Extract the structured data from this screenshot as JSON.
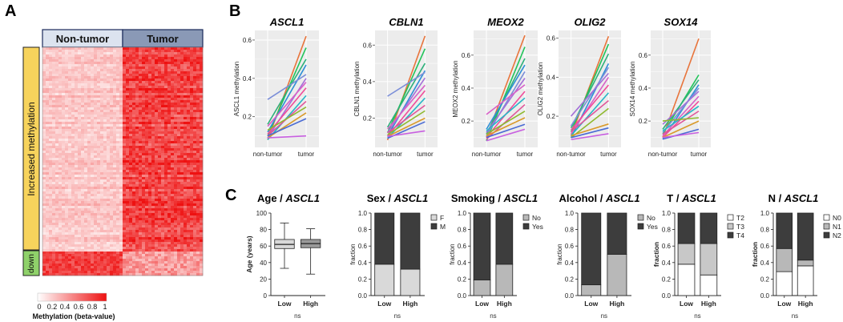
{
  "panels": {
    "a": "A",
    "b": "B",
    "c": "C"
  },
  "heatmap": {
    "group_left": "Non-tumor",
    "group_right": "Tumor",
    "side_up": "Increased methylation",
    "side_down": "down",
    "colorbar_ticks": [
      "0",
      "0.2",
      "0.4",
      "0.6",
      "0.8",
      "1"
    ],
    "colorbar_label": "Methylation (beta-value)",
    "colors": {
      "low": "#ffffff",
      "high": "#ee1111",
      "up_bar": "#f7d35c",
      "down_bar": "#8fd16a",
      "head_left": "#dce3ef",
      "head_right": "#8a99b6"
    }
  },
  "chart_data": [
    {
      "type": "line",
      "gene": "ASCL1",
      "title": "ASCL1",
      "ylabel": "ASCL1 methylation",
      "categories": [
        "non-tumor",
        "tumor"
      ],
      "ylim": [
        0.04,
        0.65
      ],
      "yticks": [
        0.2,
        0.4,
        0.6
      ],
      "ytick_labels": [
        "0.2",
        "0.4",
        "0.6"
      ],
      "series": [
        {
          "values": [
            0.08,
            0.62
          ]
        },
        {
          "values": [
            0.1,
            0.56
          ]
        },
        {
          "values": [
            0.16,
            0.5
          ]
        },
        {
          "values": [
            0.12,
            0.47
          ]
        },
        {
          "values": [
            0.29,
            0.42
          ]
        },
        {
          "values": [
            0.09,
            0.4
          ]
        },
        {
          "values": [
            0.15,
            0.38
          ]
        },
        {
          "values": [
            0.11,
            0.35
          ]
        },
        {
          "values": [
            0.08,
            0.31
          ]
        },
        {
          "values": [
            0.1,
            0.28
          ]
        },
        {
          "values": [
            0.13,
            0.25
          ]
        },
        {
          "values": [
            0.09,
            0.22
          ]
        },
        {
          "values": [
            0.1,
            0.19
          ]
        },
        {
          "values": [
            0.09,
            0.1
          ]
        }
      ]
    },
    {
      "type": "line",
      "gene": "CBLN1",
      "title": "CBLN1",
      "ylabel": "CBLN1 methylation",
      "categories": [
        "non-tumor",
        "tumor"
      ],
      "ylim": [
        0.04,
        0.68
      ],
      "yticks": [
        0.2,
        0.4,
        0.6
      ],
      "ytick_labels": [
        "0.2",
        "0.4",
        "0.6"
      ],
      "series": [
        {
          "values": [
            0.08,
            0.65
          ]
        },
        {
          "values": [
            0.12,
            0.58
          ]
        },
        {
          "values": [
            0.15,
            0.5
          ]
        },
        {
          "values": [
            0.1,
            0.46
          ]
        },
        {
          "values": [
            0.32,
            0.45
          ]
        },
        {
          "values": [
            0.12,
            0.42
          ]
        },
        {
          "values": [
            0.14,
            0.38
          ]
        },
        {
          "values": [
            0.1,
            0.35
          ]
        },
        {
          "values": [
            0.09,
            0.31
          ]
        },
        {
          "values": [
            0.12,
            0.27
          ]
        },
        {
          "values": [
            0.11,
            0.24
          ]
        },
        {
          "values": [
            0.1,
            0.2
          ]
        },
        {
          "values": [
            0.09,
            0.18
          ]
        },
        {
          "values": [
            0.1,
            0.13
          ]
        }
      ]
    },
    {
      "type": "line",
      "gene": "MEOX2",
      "title": "MEOX2",
      "ylabel": "MEOX2 methylation",
      "categories": [
        "non-tumor",
        "tumor"
      ],
      "ylim": [
        0.04,
        0.75
      ],
      "yticks": [
        0.2,
        0.4,
        0.6
      ],
      "ytick_labels": [
        "0.2",
        "0.4",
        "0.6"
      ],
      "series": [
        {
          "values": [
            0.1,
            0.72
          ]
        },
        {
          "values": [
            0.08,
            0.65
          ]
        },
        {
          "values": [
            0.12,
            0.58
          ]
        },
        {
          "values": [
            0.15,
            0.54
          ]
        },
        {
          "values": [
            0.11,
            0.5
          ]
        },
        {
          "values": [
            0.13,
            0.46
          ]
        },
        {
          "values": [
            0.24,
            0.42
          ]
        },
        {
          "values": [
            0.1,
            0.38
          ]
        },
        {
          "values": [
            0.14,
            0.34
          ]
        },
        {
          "values": [
            0.09,
            0.3
          ]
        },
        {
          "values": [
            0.12,
            0.26
          ]
        },
        {
          "values": [
            0.11,
            0.22
          ]
        },
        {
          "values": [
            0.1,
            0.18
          ]
        },
        {
          "values": [
            0.08,
            0.15
          ]
        }
      ]
    },
    {
      "type": "line",
      "gene": "OLIG2",
      "title": "OLIG2",
      "ylabel": "OLIG2 methylation",
      "categories": [
        "non-tumor",
        "tumor"
      ],
      "ylim": [
        0.04,
        0.64
      ],
      "yticks": [
        0.2,
        0.4,
        0.6
      ],
      "ytick_labels": [
        "0.2",
        "0.4",
        "0.6"
      ],
      "series": [
        {
          "values": [
            0.1,
            0.61
          ]
        },
        {
          "values": [
            0.12,
            0.57
          ]
        },
        {
          "values": [
            0.14,
            0.52
          ]
        },
        {
          "values": [
            0.09,
            0.47
          ]
        },
        {
          "values": [
            0.15,
            0.45
          ]
        },
        {
          "values": [
            0.2,
            0.42
          ]
        },
        {
          "values": [
            0.11,
            0.4
          ]
        },
        {
          "values": [
            0.13,
            0.36
          ]
        },
        {
          "values": [
            0.1,
            0.32
          ]
        },
        {
          "values": [
            0.12,
            0.28
          ]
        },
        {
          "values": [
            0.09,
            0.24
          ]
        },
        {
          "values": [
            0.1,
            0.16
          ]
        },
        {
          "values": [
            0.09,
            0.14
          ]
        },
        {
          "values": [
            0.08,
            0.11
          ]
        }
      ]
    },
    {
      "type": "line",
      "gene": "SOX14",
      "title": "SOX14",
      "ylabel": "SOX14 methylation",
      "categories": [
        "non-tumor",
        "tumor"
      ],
      "ylim": [
        0.04,
        0.75
      ],
      "yticks": [
        0.2,
        0.4,
        0.6
      ],
      "ytick_labels": [
        "0.2",
        "0.4",
        "0.6"
      ],
      "series": [
        {
          "values": [
            0.1,
            0.7
          ]
        },
        {
          "values": [
            0.12,
            0.48
          ]
        },
        {
          "values": [
            0.15,
            0.45
          ]
        },
        {
          "values": [
            0.09,
            0.42
          ]
        },
        {
          "values": [
            0.13,
            0.4
          ]
        },
        {
          "values": [
            0.18,
            0.38
          ]
        },
        {
          "values": [
            0.11,
            0.35
          ]
        },
        {
          "values": [
            0.1,
            0.32
          ]
        },
        {
          "values": [
            0.14,
            0.29
          ]
        },
        {
          "values": [
            0.12,
            0.26
          ]
        },
        {
          "values": [
            0.2,
            0.22
          ]
        },
        {
          "values": [
            0.1,
            0.2
          ]
        },
        {
          "values": [
            0.09,
            0.15
          ]
        },
        {
          "values": [
            0.1,
            0.13
          ]
        }
      ]
    },
    {
      "type": "box",
      "title_a": "Age / ",
      "title_b": "ASCL1",
      "ylabel": "Age (years)",
      "categories": [
        "Low",
        "High"
      ],
      "ylim": [
        0,
        100
      ],
      "yticks": [
        0,
        20,
        40,
        60,
        80,
        100
      ],
      "ytick_labels": [
        "0",
        "20",
        "40",
        "60",
        "80",
        "100"
      ],
      "boxes": [
        {
          "min": 33,
          "q1": 57,
          "median": 62,
          "q3": 68,
          "max": 88
        },
        {
          "min": 26,
          "q1": 58,
          "median": 63,
          "q3": 68,
          "max": 81
        }
      ],
      "note": "ns"
    },
    {
      "type": "stacked_bar",
      "title_a": "Sex / ",
      "title_b": "ASCL1",
      "ylabel": "fraction",
      "categories": [
        "Low",
        "High"
      ],
      "ylim": [
        0,
        1
      ],
      "yticks": [
        0,
        0.2,
        0.4,
        0.6,
        0.8,
        1.0
      ],
      "ytick_labels": [
        "0.0",
        "0.2",
        "0.4",
        "0.6",
        "0.8",
        "1.0"
      ],
      "series": [
        {
          "name": "F",
          "values": [
            0.38,
            0.32
          ]
        },
        {
          "name": "M",
          "values": [
            0.62,
            0.68
          ]
        }
      ],
      "note": "ns"
    },
    {
      "type": "stacked_bar",
      "title_a": "Smoking / ",
      "title_b": "ASCL1",
      "ylabel": "fraction",
      "categories": [
        "Low",
        "High"
      ],
      "ylim": [
        0,
        1
      ],
      "yticks": [
        0,
        0.2,
        0.4,
        0.6,
        0.8,
        1.0
      ],
      "ytick_labels": [
        "0.0",
        "0.2",
        "0.4",
        "0.6",
        "0.8",
        "1.0"
      ],
      "series": [
        {
          "name": "No",
          "values": [
            0.19,
            0.38
          ]
        },
        {
          "name": "Yes",
          "values": [
            0.81,
            0.62
          ]
        }
      ],
      "note": "ns"
    },
    {
      "type": "stacked_bar",
      "title_a": "Alcohol / ",
      "title_b": "ASCL1",
      "ylabel": "fraction",
      "categories": [
        "Low",
        "High"
      ],
      "ylim": [
        0,
        1
      ],
      "yticks": [
        0,
        0.2,
        0.4,
        0.6,
        0.8,
        1.0
      ],
      "ytick_labels": [
        "0.0",
        "0.2",
        "0.4",
        "0.6",
        "0.8",
        "1.0"
      ],
      "series": [
        {
          "name": "No",
          "values": [
            0.13,
            0.5
          ]
        },
        {
          "name": "Yes",
          "values": [
            0.87,
            0.5
          ]
        }
      ],
      "note": "ns"
    },
    {
      "type": "stacked_bar",
      "title_a": "T / ",
      "title_b": "ASCL1",
      "ylabel": "fraction",
      "categories": [
        "Low",
        "High"
      ],
      "ylim": [
        0,
        1
      ],
      "yticks": [
        0,
        0.2,
        0.4,
        0.6,
        0.8,
        1.0
      ],
      "ytick_labels": [
        "0.0",
        "0.2",
        "0.4",
        "0.6",
        "0.8",
        "1.0"
      ],
      "series": [
        {
          "name": "T2",
          "values": [
            0.38,
            0.25
          ]
        },
        {
          "name": "T3",
          "values": [
            0.25,
            0.38
          ]
        },
        {
          "name": "T4",
          "values": [
            0.37,
            0.37
          ]
        }
      ],
      "note": "ns"
    },
    {
      "type": "stacked_bar",
      "title_a": "N / ",
      "title_b": "ASCL1",
      "ylabel": "fraction",
      "categories": [
        "Low",
        "High"
      ],
      "ylim": [
        0,
        1
      ],
      "yticks": [
        0,
        0.2,
        0.4,
        0.6,
        0.8,
        1.0
      ],
      "ytick_labels": [
        "0.0",
        "0.2",
        "0.4",
        "0.6",
        "0.8",
        "1.0"
      ],
      "series": [
        {
          "name": "N0",
          "values": [
            0.29,
            0.36
          ]
        },
        {
          "name": "N1",
          "values": [
            0.28,
            0.07
          ]
        },
        {
          "name": "N2",
          "values": [
            0.43,
            0.57
          ]
        }
      ],
      "note": "ns"
    }
  ]
}
